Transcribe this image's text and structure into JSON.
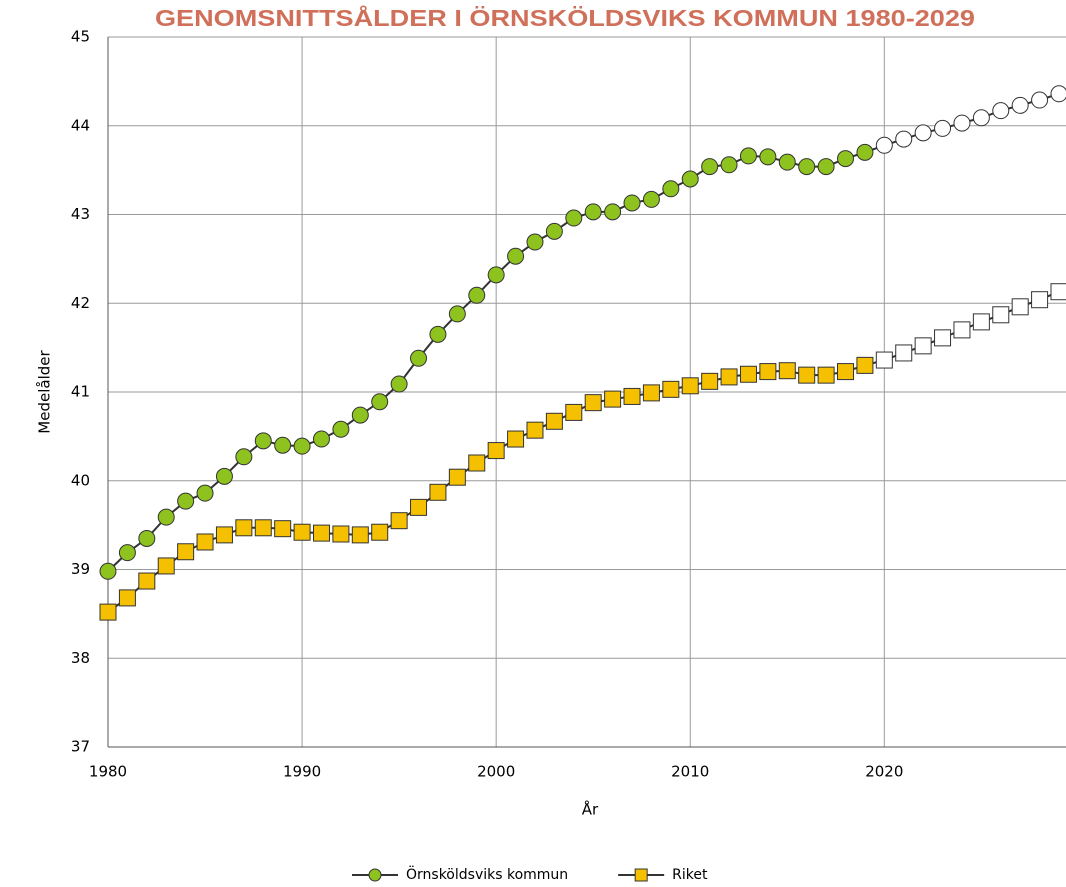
{
  "chart_data": {
    "type": "line",
    "title": "GENOMSNITTSÅLDER I ÖRNSKÖLDSVIKS KOMMUN 1980-2029",
    "title_color": "#d0705a",
    "x_label": "År",
    "y_label": "Medelålder",
    "x": [
      1980,
      1981,
      1982,
      1983,
      1984,
      1985,
      1986,
      1987,
      1988,
      1989,
      1990,
      1991,
      1992,
      1993,
      1994,
      1995,
      1996,
      1997,
      1998,
      1999,
      2000,
      2001,
      2002,
      2003,
      2004,
      2005,
      2006,
      2007,
      2008,
      2009,
      2010,
      2011,
      2012,
      2013,
      2014,
      2015,
      2016,
      2017,
      2018,
      2019,
      2020,
      2021,
      2022,
      2023,
      2024,
      2025,
      2026,
      2027,
      2028,
      2029
    ],
    "series": [
      {
        "name": "Örnsköldsviks kommun",
        "color": "#8dc21f",
        "marker": "circle",
        "values": [
          38.98,
          39.19,
          39.35,
          39.59,
          39.77,
          39.86,
          40.05,
          40.27,
          40.45,
          40.4,
          40.39,
          40.47,
          40.58,
          40.74,
          40.89,
          41.09,
          41.38,
          41.65,
          41.88,
          42.09,
          42.32,
          42.53,
          42.69,
          42.81,
          42.96,
          43.03,
          43.03,
          43.13,
          43.17,
          43.29,
          43.4,
          43.54,
          43.56,
          43.66,
          43.65,
          43.59,
          43.54,
          43.54,
          43.63,
          43.7,
          43.78,
          43.85,
          43.92,
          43.97,
          44.03,
          44.09,
          44.17,
          44.23,
          44.29,
          44.36
        ]
      },
      {
        "name": "Riket",
        "color": "#f5c000",
        "marker": "square",
        "values": [
          38.52,
          38.68,
          38.87,
          39.04,
          39.2,
          39.31,
          39.39,
          39.47,
          39.47,
          39.46,
          39.42,
          39.41,
          39.4,
          39.39,
          39.42,
          39.55,
          39.7,
          39.87,
          40.04,
          40.2,
          40.34,
          40.47,
          40.57,
          40.67,
          40.77,
          40.88,
          40.92,
          40.95,
          40.99,
          41.03,
          41.07,
          41.12,
          41.17,
          41.2,
          41.23,
          41.24,
          41.19,
          41.19,
          41.23,
          41.3,
          41.36,
          41.44,
          41.52,
          41.61,
          41.7,
          41.79,
          41.87,
          41.96,
          42.04,
          42.13
        ]
      }
    ],
    "projection_start": 2020,
    "line_color": "#333333",
    "xlim": [
      1980,
      2029
    ],
    "ylim": [
      37,
      45
    ],
    "xticks": [
      1980,
      1990,
      2000,
      2010,
      2020
    ],
    "yticks": [
      37,
      38,
      39,
      40,
      41,
      42,
      43,
      44,
      45
    ],
    "grid": true,
    "legend": "bottom"
  }
}
